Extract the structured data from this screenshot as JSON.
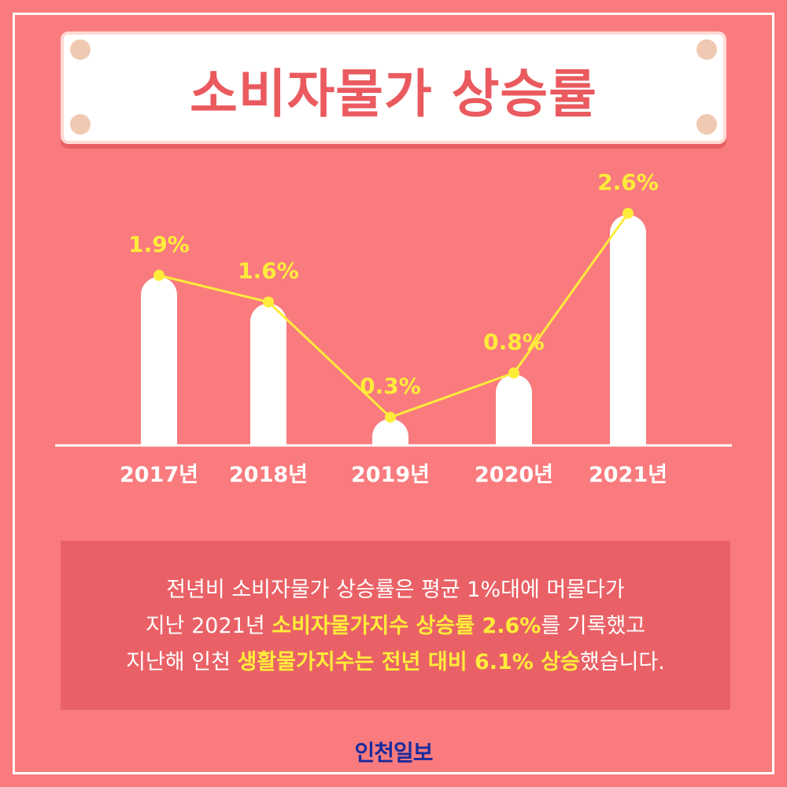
{
  "title": "소비자물가 상승률",
  "chart_data": {
    "type": "bar",
    "categories": [
      "2017년",
      "2018년",
      "2019년",
      "2020년",
      "2021년"
    ],
    "values": [
      1.9,
      1.6,
      0.3,
      0.8,
      2.6
    ],
    "value_labels": [
      "1.9%",
      "1.6%",
      "0.3%",
      "0.8%",
      "2.6%"
    ],
    "overlay_line": true,
    "title": "소비자물가 상승률",
    "xlabel": "",
    "ylabel": "",
    "ylim": [
      0,
      3.0
    ],
    "grid": false,
    "legend": "none",
    "colors": {
      "bar": "#ffffff",
      "line": "#ffec3a",
      "label": "#ffec3a",
      "background": "#f97b7e"
    }
  },
  "info": {
    "line1": "전년비 소비자물가 상승률은 평균 1%대에 머물다가",
    "line2_a": "지난 2021년 ",
    "line2_hl": "소비자물가지수 상승률 2.6%",
    "line2_b": "를 기록했고",
    "line3_a": "지난해 인천 ",
    "line3_hl": "생활물가지수는 전년 대비 6.1% 상승",
    "line3_b": "했습니다."
  },
  "logo": {
    "part1": "인천",
    "part2": "일보"
  }
}
